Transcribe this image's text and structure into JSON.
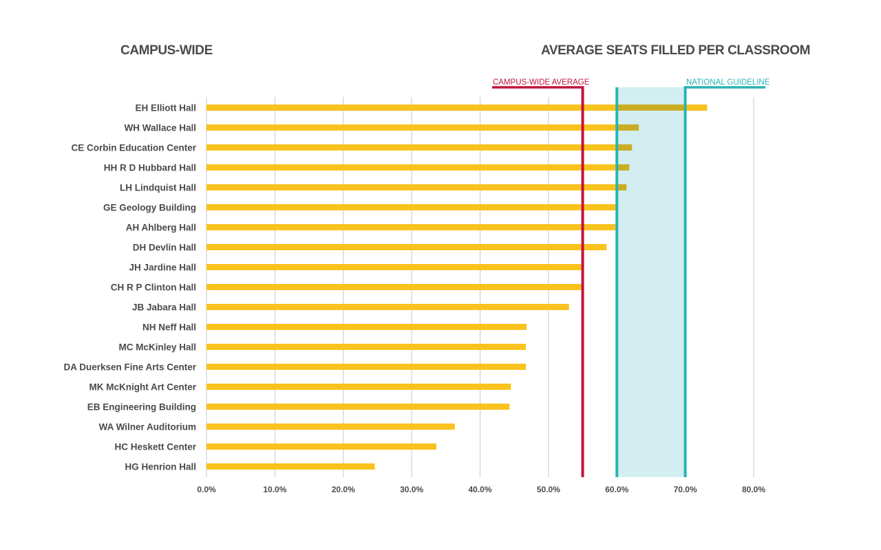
{
  "chart_data": {
    "type": "bar",
    "orientation": "horizontal",
    "title_left": "CAMPUS-WIDE",
    "title_right": "AVERAGE SEATS FILLED PER CLASSROOM",
    "categories": [
      "EH Elliott Hall",
      "WH Wallace Hall",
      "CE Corbin Education Center",
      "HH R D  Hubbard Hall",
      "LH Lindquist Hall",
      "GE Geology Building",
      "AH Ahlberg Hall",
      "DH Devlin Hall",
      "JH Jardine Hall",
      "CH R P  Clinton Hall",
      "JB Jabara Hall",
      "NH Neff Hall",
      "MC McKinley Hall",
      "DA Duerksen Fine Arts Center",
      "MK McKnight Art Center",
      "EB Engineering Building",
      "WA Wilner Auditorium",
      "HC Heskett Center",
      "HG Henrion Hall"
    ],
    "values": [
      73.2,
      63.2,
      62.2,
      61.8,
      61.4,
      59.9,
      59.8,
      58.5,
      54.9,
      54.9,
      53.0,
      46.8,
      46.7,
      46.7,
      44.5,
      44.3,
      36.3,
      33.6,
      24.6
    ],
    "xlim": [
      0,
      80
    ],
    "x_ticks": [
      "0.0%",
      "10.0%",
      "20.0%",
      "30.0%",
      "40.0%",
      "50.0%",
      "60.0%",
      "70.0%",
      "80.0%"
    ],
    "grid": true,
    "reference_line": {
      "label": "CAMPUS-WIDE AVERAGE",
      "value": 55.0,
      "color": "#c0143c"
    },
    "guideline_band": {
      "label": "NATIONAL GUIDELINE",
      "from": 60,
      "to": 70,
      "color": "#2ab3b3",
      "fill": "#d2eef0"
    },
    "colors": {
      "bar": "#f9c21d",
      "bar_in_band": "#c9ad22",
      "grid": "#c8c8c8"
    }
  }
}
